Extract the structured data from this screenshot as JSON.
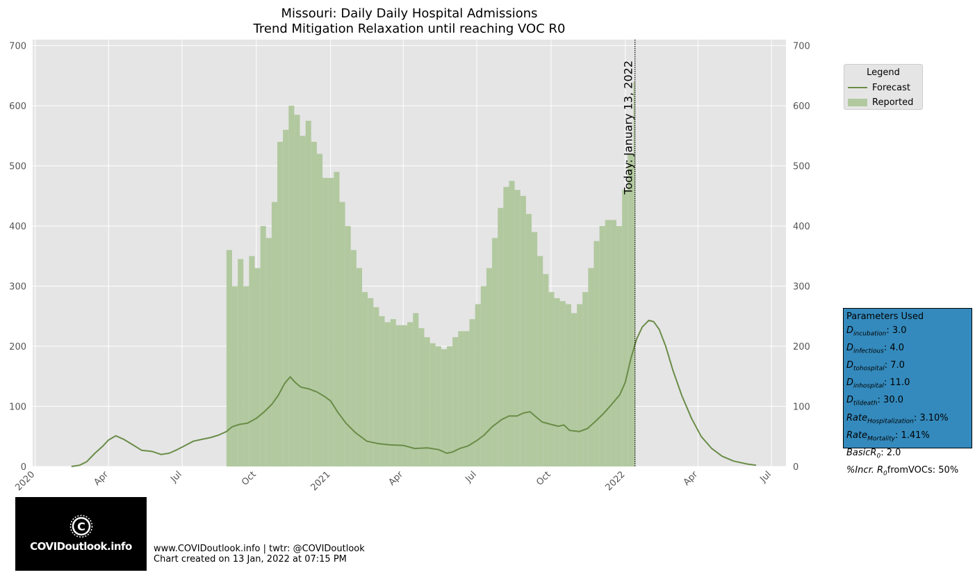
{
  "chart_data": {
    "type": "bar+line",
    "title": "Missouri: Daily Daily Hospital Admissions",
    "subtitle": "Trend Mitigation Relaxation until reaching VOC R0",
    "ylim": [
      0,
      710
    ],
    "yticks": [
      0,
      100,
      200,
      300,
      400,
      500,
      600,
      700
    ],
    "xlim": [
      "2019-12-29",
      "2022-07-19"
    ],
    "xticks": [
      {
        "date": "2020-01-01",
        "label": "2020"
      },
      {
        "date": "2020-04-01",
        "label": "Apr"
      },
      {
        "date": "2020-07-01",
        "label": "Jul"
      },
      {
        "date": "2020-10-01",
        "label": "Oct"
      },
      {
        "date": "2021-01-01",
        "label": "2021"
      },
      {
        "date": "2021-04-01",
        "label": "Apr"
      },
      {
        "date": "2021-07-01",
        "label": "Jul"
      },
      {
        "date": "2021-10-01",
        "label": "Oct"
      },
      {
        "date": "2022-01-01",
        "label": "2022"
      },
      {
        "date": "2022-04-01",
        "label": "Apr"
      },
      {
        "date": "2022-07-01",
        "label": "Jul"
      }
    ],
    "grid": true,
    "today": {
      "date": "2022-01-13",
      "label": "Today: January 13, 2022"
    },
    "series": [
      {
        "name": "Forecast",
        "kind": "line",
        "color": "#6a8c47",
        "points": [
          [
            "2020-02-15",
            0
          ],
          [
            "2020-02-25",
            2
          ],
          [
            "2020-03-05",
            8
          ],
          [
            "2020-03-15",
            22
          ],
          [
            "2020-03-25",
            34
          ],
          [
            "2020-04-01",
            44
          ],
          [
            "2020-04-10",
            51
          ],
          [
            "2020-04-20",
            45
          ],
          [
            "2020-05-01",
            36
          ],
          [
            "2020-05-12",
            27
          ],
          [
            "2020-05-25",
            25
          ],
          [
            "2020-06-05",
            20
          ],
          [
            "2020-06-15",
            22
          ],
          [
            "2020-06-25",
            28
          ],
          [
            "2020-07-05",
            35
          ],
          [
            "2020-07-15",
            42
          ],
          [
            "2020-07-25",
            45
          ],
          [
            "2020-08-05",
            48
          ],
          [
            "2020-08-15",
            52
          ],
          [
            "2020-08-25",
            58
          ],
          [
            "2020-09-01",
            66
          ],
          [
            "2020-09-10",
            70
          ],
          [
            "2020-09-20",
            72
          ],
          [
            "2020-10-01",
            80
          ],
          [
            "2020-10-10",
            90
          ],
          [
            "2020-10-20",
            103
          ],
          [
            "2020-10-28",
            118
          ],
          [
            "2020-11-05",
            138
          ],
          [
            "2020-11-12",
            149
          ],
          [
            "2020-11-18",
            140
          ],
          [
            "2020-11-25",
            132
          ],
          [
            "2020-12-05",
            129
          ],
          [
            "2020-12-15",
            124
          ],
          [
            "2020-12-25",
            116
          ],
          [
            "2021-01-01",
            109
          ],
          [
            "2021-01-10",
            90
          ],
          [
            "2021-01-20",
            72
          ],
          [
            "2021-02-01",
            56
          ],
          [
            "2021-02-15",
            42
          ],
          [
            "2021-03-01",
            38
          ],
          [
            "2021-03-15",
            36
          ],
          [
            "2021-04-01",
            35
          ],
          [
            "2021-04-15",
            30
          ],
          [
            "2021-05-01",
            31
          ],
          [
            "2021-05-15",
            28
          ],
          [
            "2021-05-25",
            22
          ],
          [
            "2021-06-01",
            24
          ],
          [
            "2021-06-10",
            30
          ],
          [
            "2021-06-20",
            34
          ],
          [
            "2021-07-01",
            43
          ],
          [
            "2021-07-10",
            52
          ],
          [
            "2021-07-20",
            66
          ],
          [
            "2021-08-01",
            78
          ],
          [
            "2021-08-10",
            84
          ],
          [
            "2021-08-20",
            84
          ],
          [
            "2021-08-28",
            89
          ],
          [
            "2021-09-05",
            91
          ],
          [
            "2021-09-12",
            83
          ],
          [
            "2021-09-20",
            74
          ],
          [
            "2021-10-01",
            70
          ],
          [
            "2021-10-10",
            67
          ],
          [
            "2021-10-17",
            69
          ],
          [
            "2021-10-24",
            60
          ],
          [
            "2021-11-05",
            58
          ],
          [
            "2021-11-15",
            63
          ],
          [
            "2021-11-25",
            75
          ],
          [
            "2021-12-05",
            88
          ],
          [
            "2021-12-15",
            103
          ],
          [
            "2021-12-25",
            119
          ],
          [
            "2022-01-01",
            140
          ],
          [
            "2022-01-08",
            180
          ],
          [
            "2022-01-15",
            212
          ],
          [
            "2022-01-22",
            232
          ],
          [
            "2022-01-30",
            243
          ],
          [
            "2022-02-05",
            241
          ],
          [
            "2022-02-12",
            228
          ],
          [
            "2022-02-20",
            200
          ],
          [
            "2022-03-01",
            160
          ],
          [
            "2022-03-12",
            118
          ],
          [
            "2022-03-24",
            80
          ],
          [
            "2022-04-05",
            50
          ],
          [
            "2022-04-18",
            30
          ],
          [
            "2022-05-01",
            17
          ],
          [
            "2022-05-15",
            9
          ],
          [
            "2022-06-01",
            4
          ],
          [
            "2022-06-12",
            2
          ]
        ]
      },
      {
        "name": "Reported",
        "kind": "bar",
        "color": "#b2c9a0",
        "points": [
          [
            "2020-08-25",
            360
          ],
          [
            "2020-09-01",
            300
          ],
          [
            "2020-09-08",
            345
          ],
          [
            "2020-09-15",
            300
          ],
          [
            "2020-09-22",
            350
          ],
          [
            "2020-09-29",
            330
          ],
          [
            "2020-10-06",
            400
          ],
          [
            "2020-10-13",
            380
          ],
          [
            "2020-10-20",
            440
          ],
          [
            "2020-10-27",
            540
          ],
          [
            "2020-11-03",
            560
          ],
          [
            "2020-11-10",
            600
          ],
          [
            "2020-11-17",
            585
          ],
          [
            "2020-11-24",
            550
          ],
          [
            "2020-12-01",
            575
          ],
          [
            "2020-12-08",
            540
          ],
          [
            "2020-12-15",
            520
          ],
          [
            "2020-12-22",
            480
          ],
          [
            "2020-12-29",
            480
          ],
          [
            "2021-01-05",
            490
          ],
          [
            "2021-01-12",
            440
          ],
          [
            "2021-01-19",
            400
          ],
          [
            "2021-01-26",
            360
          ],
          [
            "2021-02-02",
            330
          ],
          [
            "2021-02-09",
            290
          ],
          [
            "2021-02-16",
            280
          ],
          [
            "2021-02-23",
            265
          ],
          [
            "2021-03-02",
            250
          ],
          [
            "2021-03-09",
            240
          ],
          [
            "2021-03-16",
            245
          ],
          [
            "2021-03-23",
            235
          ],
          [
            "2021-03-30",
            235
          ],
          [
            "2021-04-06",
            240
          ],
          [
            "2021-04-13",
            255
          ],
          [
            "2021-04-20",
            230
          ],
          [
            "2021-04-27",
            215
          ],
          [
            "2021-05-04",
            205
          ],
          [
            "2021-05-11",
            200
          ],
          [
            "2021-05-18",
            195
          ],
          [
            "2021-05-25",
            200
          ],
          [
            "2021-06-01",
            215
          ],
          [
            "2021-06-08",
            225
          ],
          [
            "2021-06-15",
            225
          ],
          [
            "2021-06-22",
            245
          ],
          [
            "2021-06-29",
            270
          ],
          [
            "2021-07-06",
            300
          ],
          [
            "2021-07-13",
            330
          ],
          [
            "2021-07-20",
            380
          ],
          [
            "2021-07-27",
            430
          ],
          [
            "2021-08-03",
            465
          ],
          [
            "2021-08-10",
            475
          ],
          [
            "2021-08-17",
            460
          ],
          [
            "2021-08-24",
            450
          ],
          [
            "2021-08-31",
            420
          ],
          [
            "2021-09-07",
            390
          ],
          [
            "2021-09-14",
            350
          ],
          [
            "2021-09-21",
            320
          ],
          [
            "2021-09-28",
            290
          ],
          [
            "2021-10-05",
            280
          ],
          [
            "2021-10-12",
            275
          ],
          [
            "2021-10-19",
            270
          ],
          [
            "2021-10-26",
            255
          ],
          [
            "2021-11-02",
            270
          ],
          [
            "2021-11-09",
            290
          ],
          [
            "2021-11-16",
            330
          ],
          [
            "2021-11-23",
            375
          ],
          [
            "2021-11-30",
            400
          ],
          [
            "2021-12-07",
            410
          ],
          [
            "2021-12-14",
            410
          ],
          [
            "2021-12-21",
            400
          ],
          [
            "2021-12-28",
            460
          ],
          [
            "2022-01-04",
            520
          ],
          [
            "2022-01-11",
            640
          ]
        ]
      }
    ],
    "legend": {
      "title": "Legend",
      "items": [
        "Forecast",
        "Reported"
      ],
      "position": "upper-right outside"
    }
  },
  "params": {
    "title": "Parameters Used",
    "rows": [
      {
        "base": "D",
        "sub": "incubation",
        "value": ": 3.0"
      },
      {
        "base": "D",
        "sub": "infectious",
        "value": ": 4.0"
      },
      {
        "base": "D",
        "sub": "tohospital",
        "value": ": 7.0"
      },
      {
        "base": "D",
        "sub": "inhospital",
        "value": ": 11.0"
      },
      {
        "base": "D",
        "sub": "tildeath",
        "value": ": 30.0"
      },
      {
        "base": "Rate",
        "sub": "Hospitalization",
        "value": ": 3.10%"
      },
      {
        "base": "Rate",
        "sub": "Mortality",
        "value": ": 1.41%"
      },
      {
        "base": "BasicR",
        "sub": "0",
        "value": ": 2.0"
      },
      {
        "base": "%Incr. R",
        "sub": "0",
        "value": "fromVOCs: 50%"
      }
    ]
  },
  "logo": {
    "text": "COVIDoutlook.info"
  },
  "footer": {
    "line1": "www.COVIDoutlook.info | twtr: @COVIDoutlook",
    "line2": "Chart created on 13 Jan, 2022 at 07:15 PM"
  },
  "colors": {
    "plot_bg": "#e5e5e5",
    "grid": "#ffffff",
    "forecast": "#6a8c47",
    "reported": "#b2c9a0",
    "params_bg": "#348abd"
  }
}
